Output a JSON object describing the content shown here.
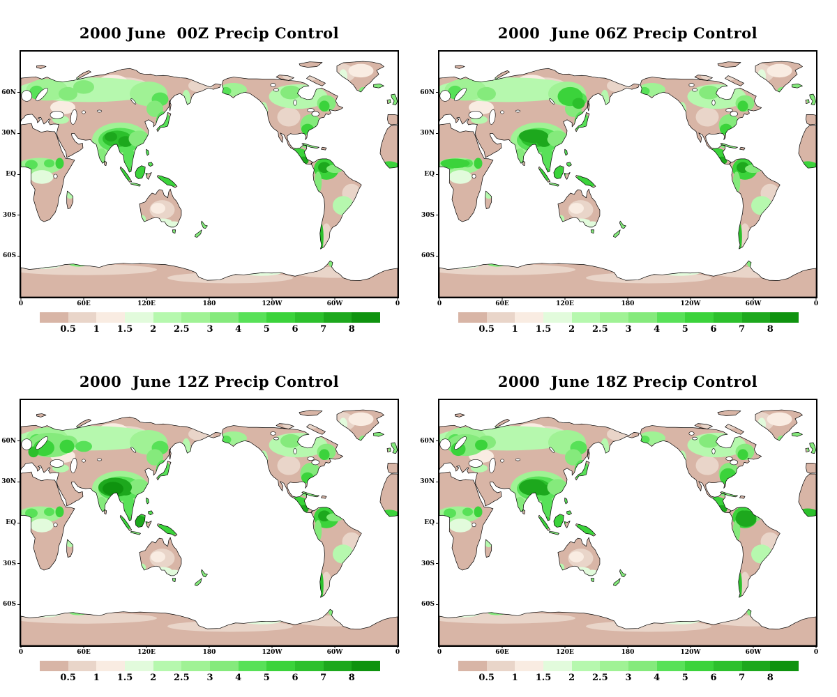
{
  "figure": {
    "panels": [
      {
        "title": "2000 June  00Z Precip Control"
      },
      {
        "title": "2000  June 06Z Precip Control"
      },
      {
        "title": "2000  June 12Z Precip Control"
      },
      {
        "title": "2000  June 18Z Precip Control"
      }
    ],
    "axes": {
      "lat_labels": [
        "60N",
        "30N",
        "EQ",
        "30S",
        "60S"
      ],
      "lon_labels": [
        "0",
        "60E",
        "120E",
        "180",
        "120W",
        "60W",
        "0"
      ]
    },
    "colorbar": {
      "tick_labels": [
        "0.5",
        "1",
        "1.5",
        "2",
        "2.5",
        "3",
        "4",
        "5",
        "6",
        "7",
        "8"
      ],
      "colors": [
        "#d8b5a6",
        "#e9d5c9",
        "#f9ece2",
        "#e2fbdc",
        "#b6f8ae",
        "#a0f295",
        "#85ea7c",
        "#58e158",
        "#3bd33b",
        "#2cc02c",
        "#1da81d",
        "#0f930f"
      ]
    },
    "map_colors": {
      "ocean": "#ffffff",
      "land_base": "#d8b5a6",
      "coastline": "#000000"
    }
  }
}
